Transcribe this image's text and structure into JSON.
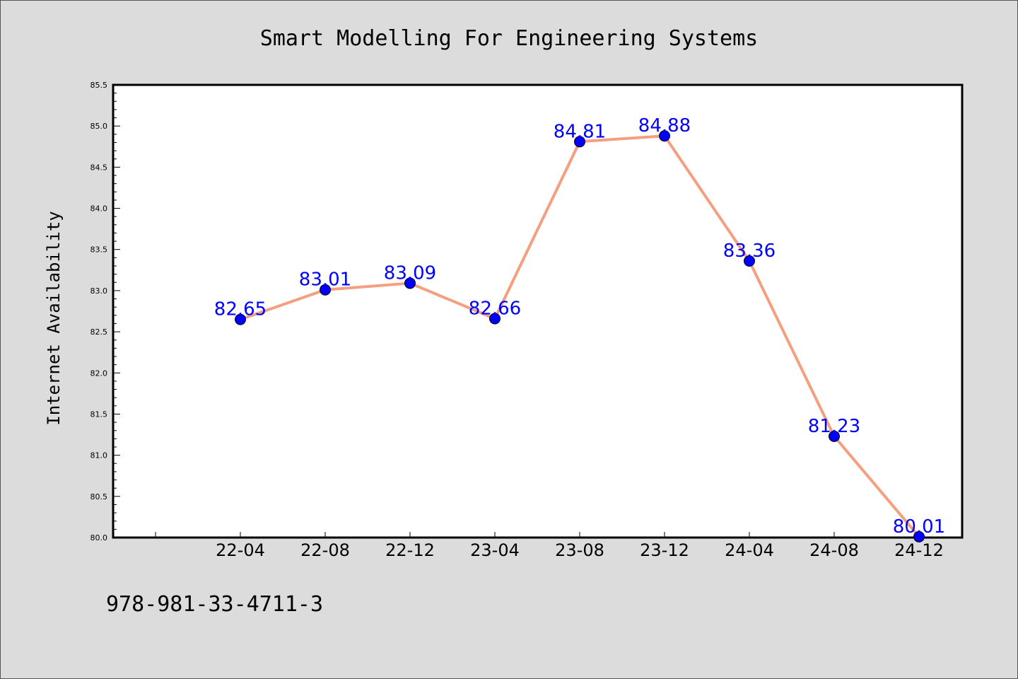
{
  "chart_data": {
    "type": "line",
    "title": "Smart Modelling For Engineering Systems",
    "xlabel": "",
    "ylabel": "Internet Availability",
    "categories": [
      "22-04",
      "22-08",
      "22-12",
      "23-04",
      "23-08",
      "23-12",
      "24-04",
      "24-08",
      "24-12"
    ],
    "series": [
      {
        "values": [
          82.65,
          83.01,
          83.09,
          82.66,
          84.81,
          84.88,
          83.36,
          81.23,
          80.01
        ],
        "labels": [
          "82.65",
          "83.01",
          "83.09",
          "82.66",
          "84.81",
          "84.88",
          "83.36",
          "81.23",
          "80.01"
        ]
      }
    ],
    "ylim": [
      80.0,
      85.5
    ],
    "yticks": [
      "80.0",
      "80.5",
      "81.0",
      "81.5",
      "82.0",
      "82.5",
      "83.0",
      "83.5",
      "84.0",
      "84.5",
      "85.0",
      "85.5"
    ],
    "grid": false,
    "legend": "none",
    "colors": {
      "line": "#f4a080",
      "marker": "#0000ff",
      "label": "#0000ff",
      "background": "#dcdcdc",
      "plot_bg": "#ffffff"
    }
  },
  "footer": {
    "isbn": "978-981-33-4711-3"
  }
}
